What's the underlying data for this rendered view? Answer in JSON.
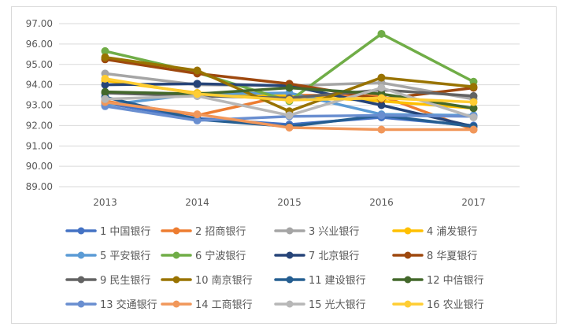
{
  "chart_data": {
    "type": "line",
    "title": "",
    "xlabel": "",
    "ylabel": "",
    "categories": [
      "2013",
      "2014",
      "2015",
      "2016",
      "2017"
    ],
    "ylim": [
      89,
      97
    ],
    "yticks": [
      "89.00",
      "90.00",
      "91.00",
      "92.00",
      "93.00",
      "94.00",
      "95.00",
      "96.00",
      "97.00"
    ],
    "grid": "horizontal",
    "legend_position": "bottom",
    "series": [
      {
        "name": "1 中国银行",
        "color": "#4472C4",
        "values": [
          93.1,
          92.35,
          92.05,
          92.4,
          92.0
        ]
      },
      {
        "name": "2 招商银行",
        "color": "#ED7D31",
        "values": [
          93.2,
          92.5,
          93.5,
          93.45,
          91.8
        ]
      },
      {
        "name": "3 兴业银行",
        "color": "#A5A5A5",
        "values": [
          94.55,
          94.0,
          93.95,
          94.1,
          93.3
        ]
      },
      {
        "name": "4 浦发银行",
        "color": "#FFC000",
        "values": [
          94.2,
          93.6,
          93.45,
          93.2,
          92.85
        ]
      },
      {
        "name": "5 平安银行",
        "color": "#5B9BD5",
        "values": [
          93.0,
          93.55,
          93.6,
          92.55,
          92.5
        ]
      },
      {
        "name": "6 宁波银行",
        "color": "#70AD47",
        "values": [
          95.65,
          94.6,
          93.2,
          96.5,
          94.15
        ]
      },
      {
        "name": "7 北京银行",
        "color": "#264478",
        "values": [
          94.0,
          94.05,
          93.95,
          93.0,
          91.95
        ]
      },
      {
        "name": "8 华夏银行",
        "color": "#9E480E",
        "values": [
          95.25,
          94.55,
          94.05,
          93.3,
          93.85
        ]
      },
      {
        "name": "9 民生银行",
        "color": "#636363",
        "values": [
          93.6,
          93.45,
          93.35,
          93.75,
          93.45
        ]
      },
      {
        "name": "10 南京银行",
        "color": "#997300",
        "values": [
          95.35,
          94.7,
          92.7,
          94.35,
          93.9
        ]
      },
      {
        "name": "11 建设银行",
        "color": "#255E91",
        "values": [
          93.4,
          92.3,
          91.95,
          92.5,
          91.95
        ]
      },
      {
        "name": "12 中信银行",
        "color": "#43682B",
        "values": [
          93.65,
          93.55,
          93.85,
          93.55,
          92.85
        ]
      },
      {
        "name": "13 交通银行",
        "color": "#698ED0",
        "values": [
          92.95,
          92.25,
          92.45,
          92.5,
          92.45
        ]
      },
      {
        "name": "14 工商银行",
        "color": "#F1975A",
        "values": [
          93.15,
          92.55,
          91.9,
          91.8,
          91.8
        ]
      },
      {
        "name": "15 光大银行",
        "color": "#B7B7B7",
        "values": [
          93.3,
          93.45,
          92.5,
          93.85,
          92.4
        ]
      },
      {
        "name": "16 农业银行",
        "color": "#FFCD33",
        "values": [
          94.3,
          93.55,
          93.25,
          93.35,
          93.15
        ]
      }
    ]
  }
}
